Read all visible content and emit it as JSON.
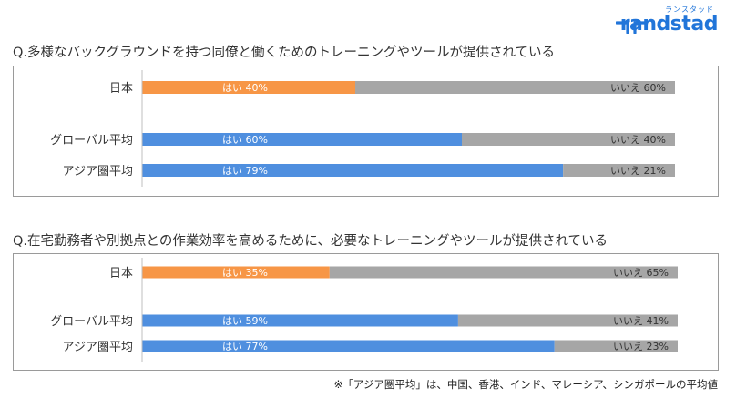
{
  "brand": {
    "kana": "ランスタッド",
    "name": "randstad",
    "color": "#2175d9"
  },
  "footnote": "※「アジア圏平均」は、中国、香港、インド、マレーシア、シンガポールの平均値",
  "colors": {
    "japan_yes": "#f79646",
    "global_yes": "#4f8fdf",
    "no": "#a6a6a6"
  },
  "chart_data": [
    {
      "type": "bar",
      "orientation": "horizontal",
      "stacked": true,
      "title": "Q.多様なバックグラウンドを持つ同僚と働くためのトレーニングやツールが提供されている",
      "categories": [
        "日本",
        "グローバル平均",
        "アジア圏平均"
      ],
      "series": [
        {
          "name": "はい",
          "values": [
            40,
            60,
            79
          ]
        },
        {
          "name": "いいえ",
          "values": [
            60,
            40,
            21
          ]
        }
      ],
      "xlim": [
        0,
        100
      ],
      "unit": "%"
    },
    {
      "type": "bar",
      "orientation": "horizontal",
      "stacked": true,
      "title": "Q.在宅勤務者や別拠点との作業効率を高めるために、必要なトレーニングやツールが提供されている",
      "categories": [
        "日本",
        "グローバル平均",
        "アジア圏平均"
      ],
      "series": [
        {
          "name": "はい",
          "values": [
            35,
            59,
            77
          ]
        },
        {
          "name": "いいえ",
          "values": [
            65,
            41,
            23
          ]
        }
      ],
      "xlim": [
        0,
        100
      ],
      "unit": "%"
    }
  ]
}
